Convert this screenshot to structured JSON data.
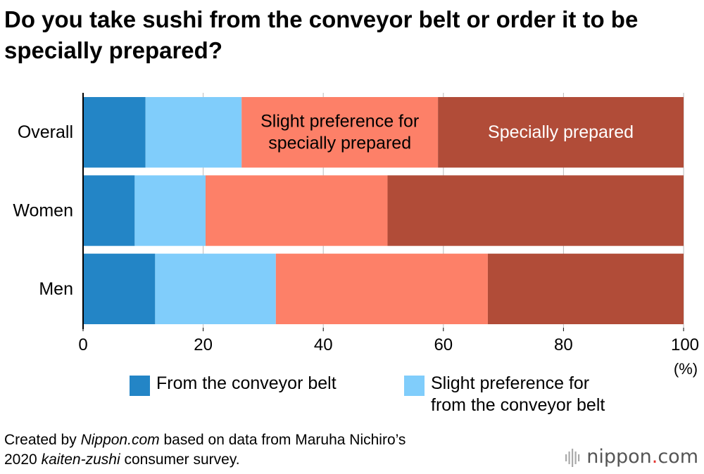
{
  "title": "Do you take sushi from the conveyor belt or order it to be specially prepared?",
  "chart_data": {
    "type": "bar",
    "orientation": "horizontal",
    "stacked": true,
    "categories": [
      "Overall",
      "Women",
      "Men"
    ],
    "series": [
      {
        "name": "From the conveyor belt",
        "color": "#2385c6",
        "values": [
          10.4,
          8.6,
          12.0
        ]
      },
      {
        "name": "Slight preference for from the conveyor belt",
        "color": "#80cdfb",
        "values": [
          16.0,
          11.8,
          20.1
        ]
      },
      {
        "name": "Slight preference for specially prepared",
        "color": "#fd8068",
        "values": [
          32.7,
          30.3,
          35.3
        ]
      },
      {
        "name": "Specially prepared",
        "color": "#b14c38",
        "values": [
          40.9,
          49.3,
          32.6
        ]
      }
    ],
    "inline_labels": [
      {
        "series": "Slight preference for specially prepared",
        "category": "Overall",
        "lines": [
          "Slight preference for",
          "specially prepared"
        ],
        "color": "#000000"
      },
      {
        "series": "Specially prepared",
        "category": "Overall",
        "lines": [
          "Specially prepared"
        ],
        "color": "#ffffff"
      }
    ],
    "xlim": [
      0,
      100
    ],
    "xticks": [
      0,
      20,
      40,
      60,
      80,
      100
    ],
    "xunit": "(%)",
    "grid": true,
    "legend": {
      "placement": "bottom",
      "entries": [
        {
          "series": "From the conveyor belt",
          "lines": [
            "From the conveyor belt"
          ]
        },
        {
          "series": "Slight preference for from the conveyor belt",
          "lines": [
            "Slight preference for",
            "from the conveyor belt"
          ]
        }
      ]
    }
  },
  "footer": {
    "parts": [
      {
        "text": "Created by ",
        "italic": false
      },
      {
        "text": "Nippon.com",
        "italic": true
      },
      {
        "text": " based on data from Maruha Nichiro’s",
        "italic": false
      },
      {
        "text": "\n",
        "italic": false
      },
      {
        "text": "2020 ",
        "italic": false
      },
      {
        "text": "kaiten-zushi",
        "italic": true
      },
      {
        "text": " consumer survey.",
        "italic": false
      }
    ]
  },
  "logo": {
    "name": "nippon",
    "dot": ".",
    "tld": "com"
  }
}
